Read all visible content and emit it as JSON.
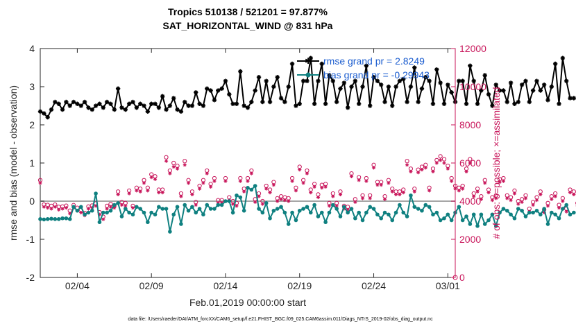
{
  "colors": {
    "rmse": "#000000",
    "bias": "#0f8080",
    "obs": "#c8155a",
    "legend_text": "#1a5ccf",
    "zero_line": "#a6a6a6"
  },
  "chart_data": {
    "type": "line",
    "title": "Tropics 510138 / 521201 = 97.877%",
    "subtitle": "SAT_HORIZONTAL_WIND @ 831 hPa",
    "xlabel": "Feb.01,2019 00:00:00 start",
    "ylabel": "rmse and bias (model - observation)",
    "ylabel_right": "# of obs: o=possible; ×=assimilated",
    "xlim": [
      1,
      29
    ],
    "ylim": [
      -2,
      4
    ],
    "ylim_right": [
      0,
      12000
    ],
    "grid": false,
    "x_ticks": [
      3.5,
      8.5,
      13.5,
      18.5,
      23.5,
      28.5
    ],
    "x_tick_labels": [
      "02/04",
      "02/09",
      "02/14",
      "02/19",
      "02/24",
      "03/01"
    ],
    "y_ticks": [
      -2,
      -1,
      0,
      1,
      2,
      3,
      4
    ],
    "y_tick_labels": [
      "-2",
      "-1",
      "0",
      "1",
      "2",
      "3",
      "4"
    ],
    "y2_ticks": [
      0,
      2000,
      4000,
      6000,
      8000,
      10000,
      12000
    ],
    "y2_tick_labels": [
      "0",
      "2000",
      "4000",
      "6000",
      "8000",
      "10000",
      "12000"
    ],
    "legend": {
      "placement": "top-right",
      "entries": [
        "rmse grand pr = 2.8249",
        "bias grand pr = -0.29943"
      ]
    },
    "footnote": "data file: /Users/raeder/DAI/ATM_forcXX/CAM6_setup/f.e21.FHIST_BGC.f09_025.CAM6assim.011/Diags_NTrS_2019-02/obs_diag_output.nc",
    "x_start": 1.0,
    "x_step": 0.25,
    "series": [
      {
        "name": "rmse",
        "marker": "*",
        "values": [
          2.35,
          2.3,
          2.2,
          2.4,
          2.6,
          2.55,
          2.4,
          2.6,
          2.5,
          2.6,
          2.55,
          2.5,
          2.6,
          2.45,
          2.4,
          2.5,
          2.55,
          2.45,
          2.6,
          2.55,
          2.4,
          2.95,
          2.45,
          2.4,
          2.55,
          2.6,
          2.45,
          2.55,
          2.5,
          2.35,
          2.55,
          2.55,
          2.45,
          2.75,
          2.4,
          2.5,
          2.7,
          2.4,
          2.35,
          2.6,
          2.5,
          2.5,
          2.85,
          2.55,
          2.5,
          2.95,
          2.9,
          2.65,
          2.9,
          2.95,
          3.15,
          2.8,
          2.55,
          2.55,
          3.4,
          2.5,
          2.45,
          2.6,
          2.9,
          3.25,
          2.6,
          3.15,
          2.6,
          3.0,
          3.25,
          2.7,
          2.6,
          3.0,
          3.6,
          2.5,
          2.55,
          3.15,
          3.15,
          3.75,
          2.55,
          3.15,
          3.6,
          2.55,
          3.3,
          3.15,
          2.6,
          2.95,
          3.1,
          2.45,
          3.0,
          3.15,
          2.55,
          3.0,
          3.55,
          2.5,
          3.25,
          3.15,
          3.05,
          2.6,
          3.0,
          2.5,
          3.0,
          3.15,
          3.2,
          2.6,
          3.0,
          3.5,
          2.6,
          2.95,
          3.25,
          3.15,
          2.55,
          3.45,
          3.1,
          2.55,
          3.05,
          2.85,
          2.6,
          3.15,
          3.15,
          2.55,
          3.55,
          3.15,
          2.55,
          2.9,
          3.3,
          2.8,
          2.5,
          3.05,
          2.9,
          2.9,
          2.6,
          3.1,
          2.55,
          2.6,
          3.05,
          3.15,
          2.6,
          2.9,
          3.15,
          2.9,
          3.05,
          2.65,
          3.0,
          3.6,
          2.55,
          3.75,
          3.15,
          2.7,
          2.7
        ]
      },
      {
        "name": "bias",
        "marker": "o",
        "values": [
          -0.47,
          -0.48,
          -0.47,
          -0.46,
          -0.47,
          -0.47,
          -0.45,
          -0.45,
          -0.47,
          -0.15,
          -0.25,
          -0.15,
          -0.35,
          -0.3,
          -0.25,
          0.2,
          -0.55,
          -0.3,
          -0.3,
          -0.25,
          -0.1,
          -0.05,
          -0.4,
          -0.2,
          -0.3,
          -0.35,
          -0.15,
          -0.2,
          -0.3,
          -0.55,
          -0.3,
          -0.35,
          -0.15,
          -0.2,
          -0.2,
          -0.8,
          -0.35,
          -0.15,
          -0.6,
          -0.1,
          -0.25,
          -0.15,
          -0.3,
          -0.2,
          -0.35,
          -0.1,
          -0.2,
          -0.2,
          -0.1,
          -0.1,
          0.0,
          0.0,
          -0.3,
          0.15,
          0.1,
          -0.25,
          0.35,
          0.3,
          0.4,
          -0.2,
          -0.3,
          -0.05,
          -0.45,
          -0.25,
          -0.2,
          -0.15,
          -0.3,
          -0.6,
          -0.3,
          -0.5,
          -0.25,
          -0.2,
          -0.15,
          -0.3,
          -0.1,
          -0.4,
          -0.3,
          -0.55,
          -0.3,
          -0.1,
          -0.2,
          -0.4,
          -0.15,
          -0.3,
          -0.2,
          -0.45,
          -0.3,
          -0.5,
          -0.3,
          -0.15,
          -0.2,
          -0.35,
          -0.45,
          -0.3,
          -0.35,
          -0.5,
          -0.3,
          -0.1,
          -0.3,
          -0.4,
          0.15,
          -0.15,
          -0.2,
          -0.25,
          -0.1,
          -0.15,
          -0.35,
          -0.3,
          -0.5,
          -0.45,
          -0.35,
          -0.5,
          -0.3,
          -0.15,
          -0.5,
          -0.4,
          -0.6,
          -0.35,
          -0.65,
          -0.35,
          -0.6,
          -0.5,
          -0.35,
          -0.65,
          -0.3,
          -0.2,
          -0.25,
          -0.35,
          -0.45,
          -0.2,
          -0.25,
          -0.4,
          -0.3,
          -0.3,
          -0.25,
          -0.35,
          -0.2,
          -0.6,
          -0.3,
          -0.35,
          -0.45,
          -0.2,
          -0.1,
          -0.35,
          -0.3
        ]
      },
      {
        "name": "obs possible",
        "marker": "o",
        "values": [
          5100,
          3820,
          3800,
          3750,
          3820,
          3700,
          3720,
          3760,
          3500,
          3790,
          3650,
          3540,
          3380,
          3720,
          3770,
          3880,
          3420,
          3180,
          3750,
          3850,
          3760,
          4500,
          3950,
          3900,
          4550,
          3750,
          4700,
          4650,
          5100,
          4700,
          5400,
          5300,
          4600,
          4600,
          6300,
          5600,
          6000,
          5850,
          4400,
          6100,
          5100,
          4500,
          3950,
          4800,
          5100,
          5600,
          4900,
          5200,
          4050,
          4050,
          5200,
          4200,
          4000,
          3900,
          5200,
          4650,
          5200,
          5600,
          4100,
          4400,
          4000,
          4800,
          4600,
          5000,
          4150,
          4250,
          4200,
          4150,
          5200,
          4700,
          5800,
          5100,
          5600,
          4600,
          4900,
          4350,
          4850,
          4900,
          3900,
          4400,
          3900,
          4500,
          3750,
          3700,
          5450,
          4100,
          5250,
          4300,
          5200,
          4300,
          5900,
          5000,
          5000,
          4250,
          5100,
          4650,
          4500,
          4500,
          4600,
          6100,
          5700,
          4650,
          5650,
          5800,
          5900,
          4700,
          5700,
          6150,
          6350,
          6200,
          5850,
          5200,
          4800,
          4700,
          4800,
          5700,
          6200,
          4400,
          4650,
          4250,
          5100,
          4600,
          4200,
          4300,
          5150,
          5200,
          4300,
          4200,
          4550,
          4000,
          4100,
          4300,
          3600,
          3950,
          4200,
          4500,
          3550,
          3900,
          4250,
          4400,
          3800,
          4150,
          3600,
          4600,
          4500,
          3900,
          4300,
          3900,
          5100
        ]
      },
      {
        "name": "obs assimilated",
        "marker": "x",
        "values": [
          4950,
          3700,
          3650,
          3600,
          3700,
          3550,
          3600,
          3650,
          3350,
          3650,
          3500,
          3400,
          3250,
          3600,
          3650,
          3750,
          3300,
          3050,
          3600,
          3700,
          3650,
          4350,
          3800,
          3750,
          4400,
          3650,
          4550,
          4500,
          4950,
          4550,
          5250,
          5150,
          4450,
          4450,
          6100,
          5450,
          5800,
          5700,
          4250,
          5900,
          4950,
          4350,
          3800,
          4650,
          4950,
          5450,
          4750,
          5050,
          3900,
          3900,
          5050,
          4050,
          3850,
          3750,
          5050,
          4500,
          5050,
          5450,
          3950,
          4250,
          3850,
          4650,
          4450,
          4850,
          4000,
          4100,
          4050,
          4000,
          5050,
          4550,
          5650,
          4950,
          5450,
          4450,
          4750,
          4200,
          4700,
          4750,
          3750,
          4250,
          3750,
          4350,
          3600,
          3550,
          5300,
          3950,
          5100,
          4150,
          5050,
          4150,
          5750,
          4850,
          4850,
          4100,
          4950,
          4500,
          4350,
          4350,
          4450,
          5900,
          5550,
          4500,
          5500,
          5650,
          5750,
          4550,
          5550,
          6000,
          6150,
          6000,
          5700,
          5050,
          4650,
          4550,
          4650,
          5550,
          6000,
          4250,
          4500,
          4100,
          4950,
          4450,
          4050,
          4150,
          5000,
          5050,
          4150,
          4050,
          4400,
          3850,
          3950,
          4150,
          3450,
          3800,
          4050,
          4350,
          3400,
          3750,
          4100,
          4250,
          3650,
          4000,
          3450,
          4450,
          4350,
          3750,
          4150,
          3750,
          4950
        ]
      }
    ]
  }
}
